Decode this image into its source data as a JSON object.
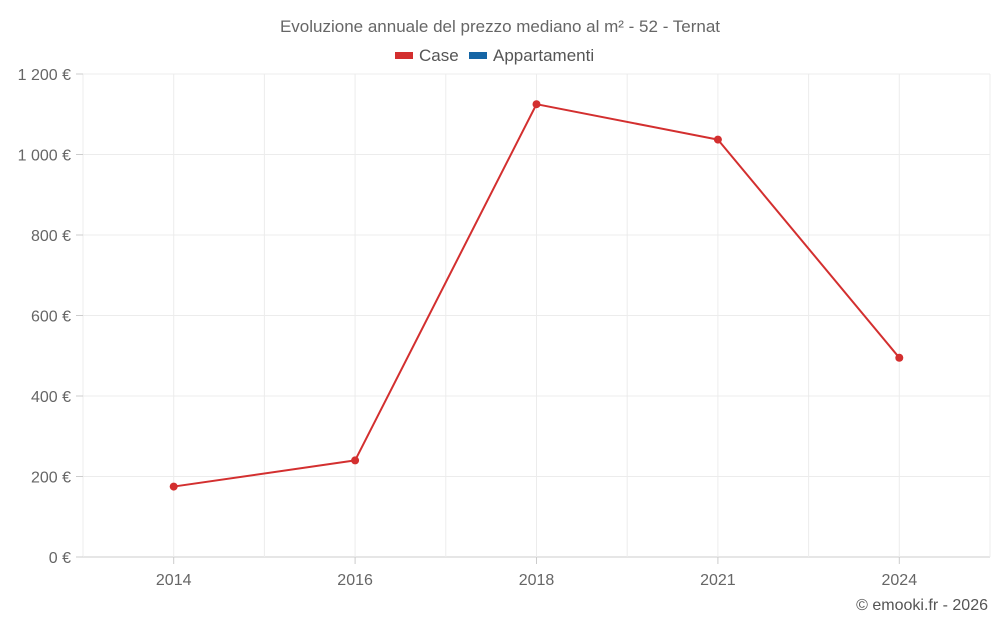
{
  "chart_data": {
    "type": "line",
    "title": "Evoluzione annuale del prezzo mediano al m² - 52 - Ternat",
    "categories": [
      "2014",
      "2016",
      "2018",
      "2021",
      "2024"
    ],
    "series": [
      {
        "name": "Case",
        "color": "#d32f2f",
        "values": [
          175,
          240,
          1125,
          1037,
          495
        ]
      },
      {
        "name": "Appartamenti",
        "color": "#1565a5",
        "values": [
          null,
          null,
          null,
          null,
          null
        ]
      }
    ],
    "y_ticks": [
      0,
      200,
      400,
      600,
      800,
      1000,
      1200
    ],
    "y_tick_labels": [
      "0 €",
      "200 €",
      "400 €",
      "600 €",
      "800 €",
      "1 000 €",
      "1 200 €"
    ],
    "ylim": [
      0,
      1200
    ],
    "xlabel": "",
    "ylabel": "",
    "grid": true,
    "legend_position": "top-center"
  },
  "credit": "© emooki.fr - 2026"
}
